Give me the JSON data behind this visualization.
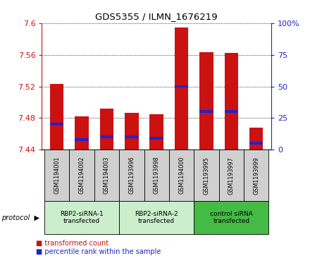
{
  "title": "GDS5355 / ILMN_1676219",
  "samples": [
    "GSM1194001",
    "GSM1194002",
    "GSM1194003",
    "GSM1193996",
    "GSM1193998",
    "GSM1194000",
    "GSM1193995",
    "GSM1193997",
    "GSM1193999"
  ],
  "red_values": [
    7.523,
    7.482,
    7.492,
    7.487,
    7.485,
    7.594,
    7.563,
    7.562,
    7.468
  ],
  "blue_pct": [
    20,
    8,
    10,
    10,
    9,
    50,
    30,
    30,
    5
  ],
  "y_min": 7.44,
  "y_max": 7.6,
  "y_ticks": [
    7.44,
    7.48,
    7.52,
    7.56,
    7.6
  ],
  "y2_ticks": [
    0,
    25,
    50,
    75,
    100
  ],
  "protocols": [
    {
      "label": "RBP2-siRNA-1\ntransfected",
      "start": 0,
      "end": 3,
      "color": "#cceecc"
    },
    {
      "label": "RBP2-siRNA-2\ntransfected",
      "start": 3,
      "end": 6,
      "color": "#cceecc"
    },
    {
      "label": "control siRNA\ntransfected",
      "start": 6,
      "end": 9,
      "color": "#44bb44"
    }
  ],
  "bar_width": 0.55,
  "red_color": "#cc1111",
  "blue_color": "#2222cc",
  "bg_color": "#d0d0d0",
  "protocol_label": "protocol",
  "legend_red": "transformed count",
  "legend_blue": "percentile rank within the sample"
}
